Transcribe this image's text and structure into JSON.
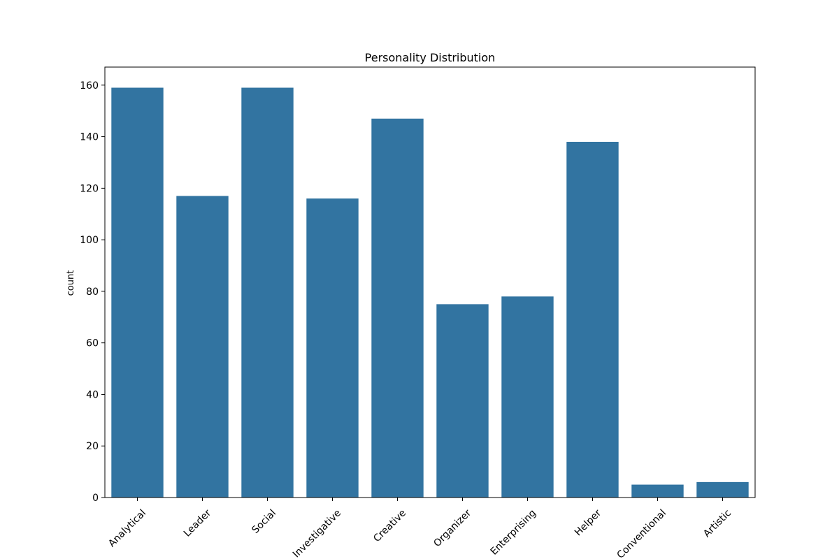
{
  "chart_data": {
    "type": "bar",
    "title": "Personality Distribution",
    "xlabel": "",
    "ylabel": "count",
    "categories": [
      "Analytical",
      "Leader",
      "Social",
      "Investigative",
      "Creative",
      "Organizer",
      "Enterprising",
      "Helper",
      "Conventional",
      "Artistic"
    ],
    "values": [
      159,
      117,
      159,
      116,
      147,
      75,
      78,
      138,
      5,
      6
    ],
    "ylim": [
      0,
      167
    ],
    "yticks": [
      0,
      20,
      40,
      60,
      80,
      100,
      120,
      140,
      160
    ],
    "grid": false,
    "legend": "none",
    "bar_color": "#3274a1",
    "xtick_rotation_deg": 45
  }
}
